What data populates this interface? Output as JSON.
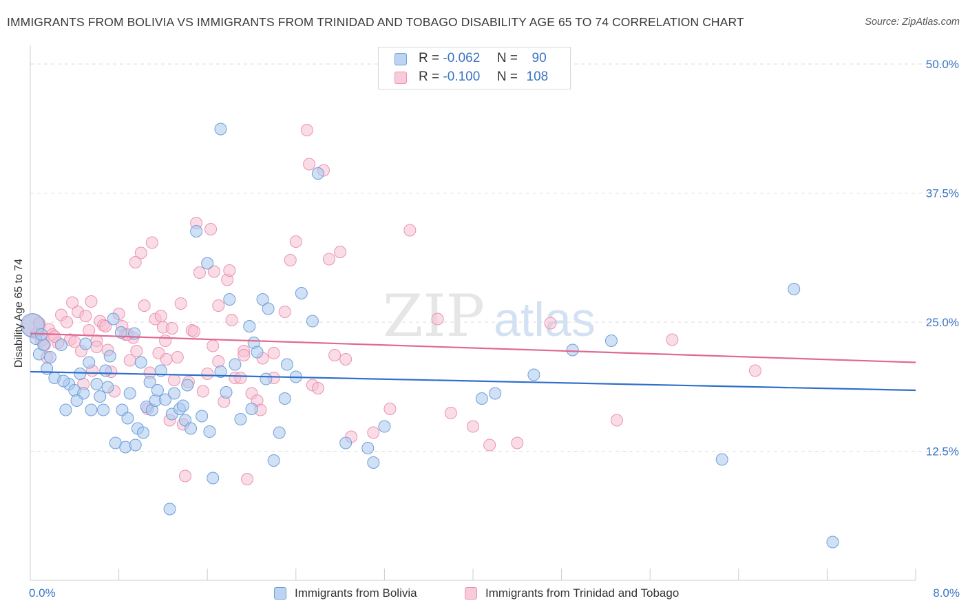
{
  "header": {
    "title": "IMMIGRANTS FROM BOLIVIA VS IMMIGRANTS FROM TRINIDAD AND TOBAGO DISABILITY AGE 65 TO 74 CORRELATION CHART",
    "source": "Source: ZipAtlas.com"
  },
  "watermark": {
    "zip": "ZIP",
    "atlas": "atlas"
  },
  "stats": [
    {
      "r_label": "R =",
      "r_value": "-0.062",
      "n_label": "N =",
      "n_value": "90"
    },
    {
      "r_label": "R =",
      "r_value": "-0.100",
      "n_label": "N =",
      "n_value": "108"
    }
  ],
  "legend": [
    {
      "name": "Immigrants from Bolivia"
    },
    {
      "name": "Immigrants from Trinidad and Tobago"
    }
  ],
  "colors": {
    "blue_fill": "#a9c8ef",
    "blue_stroke": "#6d9fdc",
    "blue_line": "#2f6fcb",
    "pink_fill": "#f5c0d1",
    "pink_stroke": "#ec92b0",
    "pink_line": "#e0688f",
    "axis_text": "#3a75c4"
  },
  "chart_data": {
    "type": "scatter",
    "title": "IMMIGRANTS FROM BOLIVIA VS IMMIGRANTS FROM TRINIDAD AND TOBAGO DISABILITY AGE 65 TO 74 CORRELATION CHART",
    "ylabel": "Disability Age 65 to 74",
    "xlabel": "",
    "xlim": [
      0,
      8
    ],
    "ylim": [
      0,
      51
    ],
    "x_tick_labels": [
      "0.0%",
      "8.0%"
    ],
    "y_ticks": [
      12.5,
      25.0,
      37.5,
      50.0
    ],
    "y_tick_labels": [
      "12.5%",
      "25.0%",
      "37.5%",
      "50.0%"
    ],
    "grid": true,
    "legend_position": "bottom",
    "series": [
      {
        "name": "Immigrants from Bolivia",
        "trend": [
          [
            0,
            20.2
          ],
          [
            8,
            18.4
          ]
        ],
        "points": [
          [
            0.02,
            24.7
          ],
          [
            0.05,
            23.4
          ],
          [
            0.08,
            21.9
          ],
          [
            0.12,
            22.8
          ],
          [
            0.15,
            20.5
          ],
          [
            0.18,
            21.6
          ],
          [
            0.22,
            19.6
          ],
          [
            0.28,
            22.8
          ],
          [
            0.32,
            16.5
          ],
          [
            0.35,
            19.0
          ],
          [
            0.4,
            18.4
          ],
          [
            0.45,
            20.0
          ],
          [
            0.48,
            18.1
          ],
          [
            0.53,
            21.1
          ],
          [
            0.55,
            16.5
          ],
          [
            0.6,
            19.0
          ],
          [
            0.63,
            17.8
          ],
          [
            0.66,
            16.5
          ],
          [
            0.7,
            18.7
          ],
          [
            0.72,
            21.7
          ],
          [
            0.75,
            25.3
          ],
          [
            0.77,
            13.3
          ],
          [
            0.82,
            24.0
          ],
          [
            0.83,
            16.5
          ],
          [
            0.86,
            12.9
          ],
          [
            0.9,
            18.1
          ],
          [
            0.94,
            23.9
          ],
          [
            0.97,
            14.7
          ],
          [
            1.0,
            21.1
          ],
          [
            1.02,
            14.3
          ],
          [
            1.05,
            16.8
          ],
          [
            1.1,
            16.5
          ],
          [
            1.13,
            17.4
          ],
          [
            1.15,
            18.4
          ],
          [
            1.18,
            20.3
          ],
          [
            1.22,
            17.5
          ],
          [
            1.26,
            6.9
          ],
          [
            1.28,
            16.1
          ],
          [
            1.3,
            18.1
          ],
          [
            1.35,
            16.6
          ],
          [
            1.38,
            16.9
          ],
          [
            1.4,
            15.5
          ],
          [
            1.45,
            14.7
          ],
          [
            1.5,
            33.8
          ],
          [
            1.55,
            15.9
          ],
          [
            1.6,
            30.7
          ],
          [
            1.65,
            9.9
          ],
          [
            1.72,
            43.7
          ],
          [
            1.77,
            18.2
          ],
          [
            1.8,
            27.2
          ],
          [
            1.85,
            20.9
          ],
          [
            1.9,
            15.6
          ],
          [
            1.98,
            24.6
          ],
          [
            2.02,
            23.0
          ],
          [
            2.05,
            22.1
          ],
          [
            2.1,
            27.2
          ],
          [
            2.13,
            19.5
          ],
          [
            2.15,
            26.3
          ],
          [
            2.2,
            11.6
          ],
          [
            2.25,
            14.3
          ],
          [
            2.3,
            17.6
          ],
          [
            2.4,
            19.7
          ],
          [
            2.45,
            27.8
          ],
          [
            2.55,
            25.1
          ],
          [
            2.6,
            39.4
          ],
          [
            2.85,
            13.3
          ],
          [
            3.05,
            12.8
          ],
          [
            3.1,
            11.4
          ],
          [
            4.08,
            17.6
          ],
          [
            4.2,
            18.1
          ],
          [
            4.55,
            19.9
          ],
          [
            4.9,
            22.3
          ],
          [
            5.25,
            23.2
          ],
          [
            6.25,
            11.7
          ],
          [
            6.9,
            28.2
          ],
          [
            7.25,
            3.7
          ],
          [
            0.5,
            22.9
          ],
          [
            0.95,
            13.1
          ],
          [
            1.62,
            14.4
          ],
          [
            0.3,
            19.3
          ],
          [
            0.1,
            23.8
          ],
          [
            0.42,
            17.4
          ],
          [
            1.08,
            19.2
          ],
          [
            1.72,
            20.2
          ],
          [
            2.32,
            20.9
          ],
          [
            3.2,
            14.9
          ],
          [
            0.68,
            20.3
          ],
          [
            1.42,
            18.9
          ],
          [
            0.88,
            15.7
          ],
          [
            2.0,
            16.6
          ]
        ]
      },
      {
        "name": "Immigrants from Trinidad and Tobago",
        "trend": [
          [
            0,
            23.9
          ],
          [
            8,
            21.1
          ]
        ],
        "points": [
          [
            0.03,
            24.6
          ],
          [
            0.06,
            23.9
          ],
          [
            0.1,
            23.2
          ],
          [
            0.13,
            22.8
          ],
          [
            0.17,
            24.3
          ],
          [
            0.2,
            23.8
          ],
          [
            0.25,
            23.0
          ],
          [
            0.28,
            25.7
          ],
          [
            0.33,
            25.0
          ],
          [
            0.36,
            23.3
          ],
          [
            0.4,
            23.1
          ],
          [
            0.43,
            26.0
          ],
          [
            0.46,
            22.2
          ],
          [
            0.5,
            25.6
          ],
          [
            0.53,
            24.2
          ],
          [
            0.56,
            20.3
          ],
          [
            0.6,
            23.2
          ],
          [
            0.63,
            25.1
          ],
          [
            0.66,
            24.7
          ],
          [
            0.7,
            22.3
          ],
          [
            0.73,
            20.2
          ],
          [
            0.76,
            18.3
          ],
          [
            0.8,
            25.8
          ],
          [
            0.83,
            24.6
          ],
          [
            0.86,
            23.8
          ],
          [
            0.9,
            21.3
          ],
          [
            0.93,
            23.5
          ],
          [
            0.96,
            22.2
          ],
          [
            1.0,
            31.7
          ],
          [
            1.03,
            26.6
          ],
          [
            1.06,
            16.6
          ],
          [
            1.1,
            32.7
          ],
          [
            1.13,
            25.3
          ],
          [
            1.16,
            22.0
          ],
          [
            1.2,
            24.5
          ],
          [
            1.23,
            21.4
          ],
          [
            1.26,
            15.5
          ],
          [
            1.3,
            19.4
          ],
          [
            1.33,
            21.6
          ],
          [
            1.36,
            26.8
          ],
          [
            1.4,
            10.1
          ],
          [
            1.43,
            19.2
          ],
          [
            1.46,
            24.2
          ],
          [
            1.5,
            34.6
          ],
          [
            1.53,
            29.8
          ],
          [
            1.56,
            18.3
          ],
          [
            1.6,
            20.0
          ],
          [
            1.63,
            34.0
          ],
          [
            1.66,
            29.9
          ],
          [
            1.7,
            21.2
          ],
          [
            1.75,
            17.3
          ],
          [
            1.78,
            29.1
          ],
          [
            1.8,
            30.0
          ],
          [
            1.85,
            19.6
          ],
          [
            1.9,
            19.6
          ],
          [
            1.93,
            22.2
          ],
          [
            1.96,
            9.8
          ],
          [
            2.0,
            18.1
          ],
          [
            2.05,
            17.4
          ],
          [
            2.08,
            16.5
          ],
          [
            2.1,
            21.5
          ],
          [
            2.2,
            19.6
          ],
          [
            2.3,
            26.0
          ],
          [
            2.4,
            32.8
          ],
          [
            2.5,
            43.6
          ],
          [
            2.52,
            40.3
          ],
          [
            2.55,
            18.9
          ],
          [
            2.65,
            39.7
          ],
          [
            2.7,
            31.1
          ],
          [
            2.75,
            21.8
          ],
          [
            2.8,
            31.8
          ],
          [
            2.85,
            21.4
          ],
          [
            2.9,
            13.9
          ],
          [
            3.1,
            14.3
          ],
          [
            3.25,
            16.6
          ],
          [
            3.43,
            33.9
          ],
          [
            3.68,
            25.3
          ],
          [
            3.8,
            16.2
          ],
          [
            4.0,
            14.9
          ],
          [
            4.15,
            13.1
          ],
          [
            4.4,
            13.3
          ],
          [
            4.7,
            24.9
          ],
          [
            5.3,
            15.5
          ],
          [
            5.8,
            23.3
          ],
          [
            6.55,
            20.3
          ],
          [
            0.08,
            24.9
          ],
          [
            0.22,
            23.6
          ],
          [
            0.38,
            26.9
          ],
          [
            0.55,
            27.0
          ],
          [
            0.68,
            24.6
          ],
          [
            0.88,
            23.8
          ],
          [
            1.18,
            25.6
          ],
          [
            1.28,
            24.4
          ],
          [
            1.48,
            24.1
          ],
          [
            1.7,
            26.6
          ],
          [
            1.93,
            21.8
          ],
          [
            2.2,
            22.0
          ],
          [
            2.6,
            18.6
          ],
          [
            1.08,
            20.1
          ],
          [
            0.48,
            19.0
          ],
          [
            0.15,
            21.6
          ],
          [
            1.38,
            15.1
          ],
          [
            1.82,
            25.2
          ],
          [
            2.35,
            31.0
          ],
          [
            0.95,
            30.8
          ],
          [
            1.65,
            22.7
          ],
          [
            0.6,
            22.6
          ],
          [
            1.22,
            23.2
          ]
        ]
      }
    ]
  }
}
